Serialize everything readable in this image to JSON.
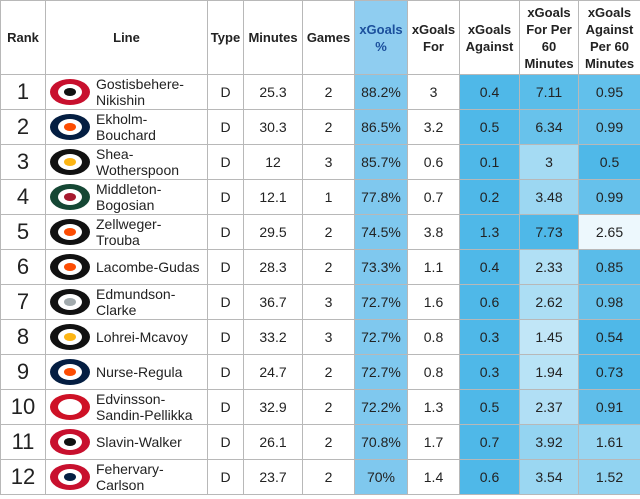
{
  "table": {
    "headers": [
      "Rank",
      "Line",
      "Type",
      "Minutes",
      "Games",
      "xGoals %",
      "xGoals For",
      "xGoals Against",
      "xGoals For Per 60 Minutes",
      "xGoals Against Per 60 Minutes"
    ],
    "rows": [
      [
        "1",
        "Gostisbehere-Nikishin",
        "D",
        "25.3",
        "2",
        "88.2%",
        "3",
        "0.4",
        "7.11",
        "0.95"
      ],
      [
        "2",
        "Ekholm-Bouchard",
        "D",
        "30.3",
        "2",
        "86.5%",
        "3.2",
        "0.5",
        "6.34",
        "0.99"
      ],
      [
        "3",
        "Shea-Wotherspoon",
        "D",
        "12",
        "3",
        "85.7%",
        "0.6",
        "0.1",
        "3",
        "0.5"
      ],
      [
        "4",
        "Middleton-Bogosian",
        "D",
        "12.1",
        "1",
        "77.8%",
        "0.7",
        "0.2",
        "3.48",
        "0.99"
      ],
      [
        "5",
        "Zellweger-Trouba",
        "D",
        "29.5",
        "2",
        "74.5%",
        "3.8",
        "1.3",
        "7.73",
        "2.65"
      ],
      [
        "6",
        "Lacombe-Gudas",
        "D",
        "28.3",
        "2",
        "73.3%",
        "1.1",
        "0.4",
        "2.33",
        "0.85"
      ],
      [
        "7",
        "Edmundson-Clarke",
        "D",
        "36.7",
        "3",
        "72.7%",
        "1.6",
        "0.6",
        "2.62",
        "0.98"
      ],
      [
        "8",
        "Lohrei-Mcavoy",
        "D",
        "33.2",
        "3",
        "72.7%",
        "0.8",
        "0.3",
        "1.45",
        "0.54"
      ],
      [
        "9",
        "Nurse-Regula",
        "D",
        "24.7",
        "2",
        "72.7%",
        "0.8",
        "0.3",
        "1.94",
        "0.73"
      ],
      [
        "10",
        "Edvinsson-Sandin-Pellikka",
        "D",
        "32.9",
        "2",
        "72.2%",
        "1.3",
        "0.5",
        "2.37",
        "0.91"
      ],
      [
        "11",
        "Slavin-Walker",
        "D",
        "26.1",
        "2",
        "70.8%",
        "1.7",
        "0.7",
        "3.92",
        "1.61"
      ],
      [
        "12",
        "Fehervary-Carlson",
        "D",
        "23.7",
        "2",
        "70%",
        "1.4",
        "0.6",
        "3.54",
        "1.52"
      ]
    ]
  }
}
